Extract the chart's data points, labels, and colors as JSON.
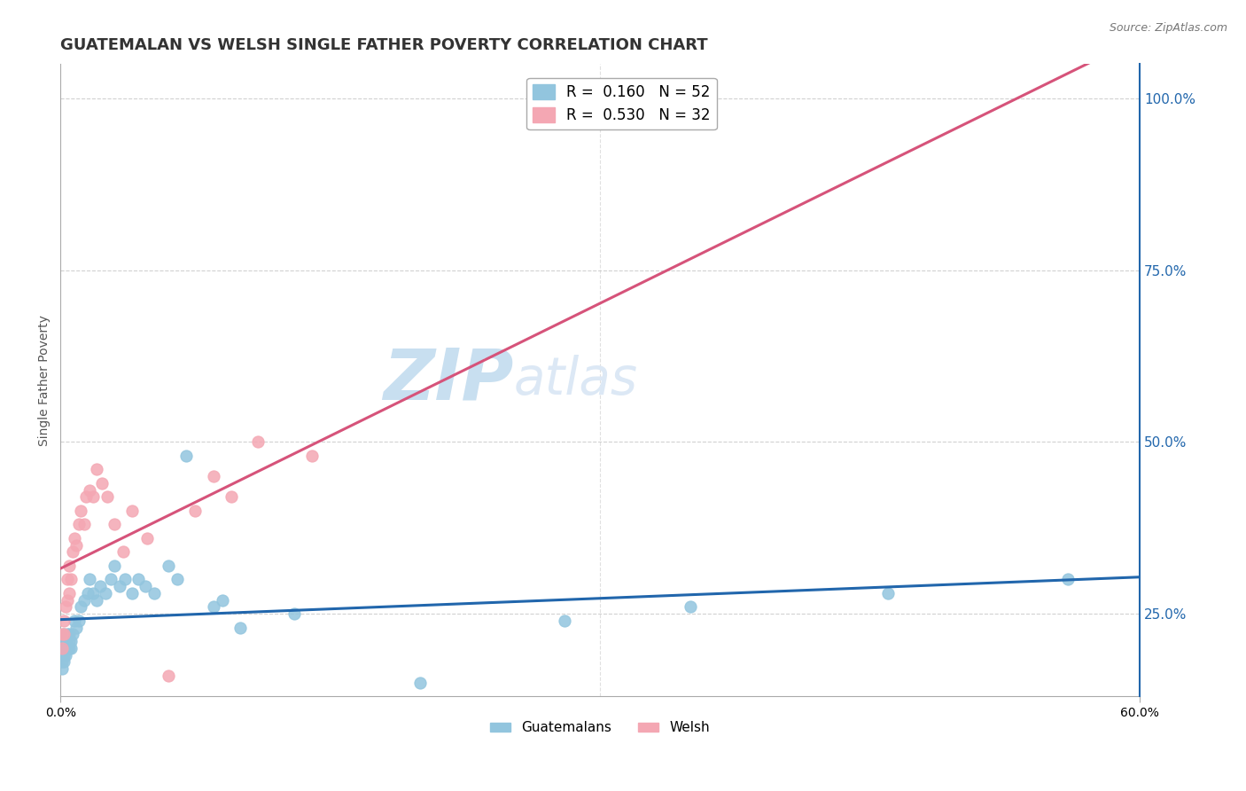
{
  "title": "GUATEMALAN VS WELSH SINGLE FATHER POVERTY CORRELATION CHART",
  "source_text": "Source: ZipAtlas.com",
  "ylabel": "Single Father Poverty",
  "watermark": "ZIPatlas",
  "legend_entries": [
    {
      "label": "R =  0.160   N = 52",
      "color": "#92c5de"
    },
    {
      "label": "R =  0.530   N = 32",
      "color": "#f4a7b3"
    }
  ],
  "legend_labels_bottom": [
    "Guatemalans",
    "Welsh"
  ],
  "xlim": [
    0.0,
    0.6
  ],
  "ylim": [
    0.13,
    1.05
  ],
  "x_ticks": [
    0.0,
    0.6
  ],
  "x_tick_labels": [
    "0.0%",
    "60.0%"
  ],
  "y_ticks_right": [
    0.25,
    0.5,
    0.75,
    1.0
  ],
  "y_tick_labels_right": [
    "25.0%",
    "50.0%",
    "75.0%",
    "100.0%"
  ],
  "guatemalan_x": [
    0.001,
    0.001,
    0.001,
    0.001,
    0.001,
    0.002,
    0.002,
    0.002,
    0.002,
    0.002,
    0.003,
    0.003,
    0.003,
    0.004,
    0.004,
    0.005,
    0.005,
    0.005,
    0.006,
    0.006,
    0.007,
    0.008,
    0.009,
    0.01,
    0.011,
    0.013,
    0.015,
    0.016,
    0.018,
    0.02,
    0.022,
    0.025,
    0.028,
    0.03,
    0.033,
    0.036,
    0.04,
    0.043,
    0.047,
    0.052,
    0.06,
    0.065,
    0.07,
    0.085,
    0.09,
    0.1,
    0.13,
    0.2,
    0.28,
    0.35,
    0.46,
    0.56
  ],
  "guatemalan_y": [
    0.2,
    0.19,
    0.21,
    0.18,
    0.17,
    0.2,
    0.21,
    0.19,
    0.22,
    0.18,
    0.2,
    0.19,
    0.21,
    0.2,
    0.22,
    0.2,
    0.22,
    0.21,
    0.2,
    0.21,
    0.22,
    0.24,
    0.23,
    0.24,
    0.26,
    0.27,
    0.28,
    0.3,
    0.28,
    0.27,
    0.29,
    0.28,
    0.3,
    0.32,
    0.29,
    0.3,
    0.28,
    0.3,
    0.29,
    0.28,
    0.32,
    0.3,
    0.48,
    0.26,
    0.27,
    0.23,
    0.25,
    0.15,
    0.24,
    0.26,
    0.28,
    0.3
  ],
  "welsh_x": [
    0.001,
    0.001,
    0.002,
    0.002,
    0.003,
    0.004,
    0.004,
    0.005,
    0.005,
    0.006,
    0.007,
    0.008,
    0.009,
    0.01,
    0.011,
    0.013,
    0.014,
    0.016,
    0.018,
    0.02,
    0.023,
    0.026,
    0.03,
    0.035,
    0.04,
    0.048,
    0.06,
    0.075,
    0.085,
    0.095,
    0.11,
    0.14
  ],
  "welsh_y": [
    0.2,
    0.22,
    0.24,
    0.22,
    0.26,
    0.27,
    0.3,
    0.28,
    0.32,
    0.3,
    0.34,
    0.36,
    0.35,
    0.38,
    0.4,
    0.38,
    0.42,
    0.43,
    0.42,
    0.46,
    0.44,
    0.42,
    0.38,
    0.34,
    0.4,
    0.36,
    0.16,
    0.4,
    0.45,
    0.42,
    0.5,
    0.48
  ],
  "blue_color": "#92c5de",
  "pink_color": "#f4a7b3",
  "blue_line_color": "#2166ac",
  "pink_line_color": "#d6537a",
  "bg_color": "#ffffff",
  "grid_color": "#cccccc",
  "title_color": "#333333",
  "watermark_color_zip": "#c8dff0",
  "watermark_color_atlas": "#dce8f5",
  "watermark_fontsize": 58,
  "title_fontsize": 13,
  "axis_fontsize": 10
}
